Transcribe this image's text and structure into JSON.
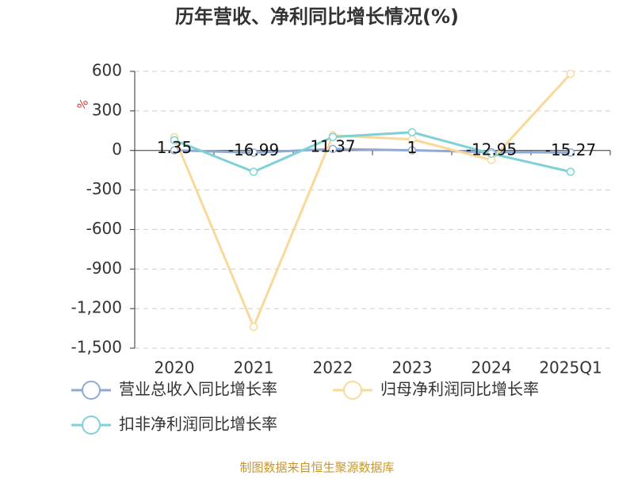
{
  "chart_data": {
    "type": "line",
    "title": "历年营收、净利同比增长情况(%)",
    "y_unit": "%",
    "categories": [
      "2020",
      "2021",
      "2022",
      "2023",
      "2024",
      "2025Q1"
    ],
    "series": [
      {
        "name": "营业总收入同比增长率",
        "color": "#8fa9d6",
        "values": [
          1.35,
          -16.99,
          11.37,
          1,
          -12.95,
          -15.27
        ],
        "data_labels": true
      },
      {
        "name": "归母净利润同比增长率",
        "color": "#f9d89a",
        "values": [
          100,
          -1338,
          114,
          84,
          -72,
          582
        ]
      },
      {
        "name": "扣非净利润同比增长率",
        "color": "#7fd1d4",
        "values": [
          78,
          -162,
          102,
          138,
          -24,
          -162
        ]
      }
    ],
    "ylim": [
      -1500,
      600
    ],
    "yticks": [
      {
        "value": -1500,
        "label": "-1,500"
      },
      {
        "value": -1200,
        "label": "-1,200"
      },
      -900,
      -600,
      -300,
      0,
      300,
      600
    ],
    "grid": true,
    "source": "制图数据来自恒生聚源数据库"
  }
}
